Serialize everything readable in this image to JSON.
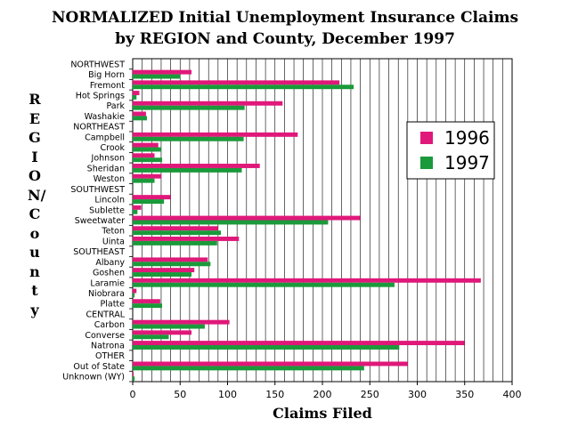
{
  "title_line1": "NORMALIZED Initial Unemployment Insurance Claims",
  "title_line2": "by REGION and County, December 1997",
  "chart_data": {
    "type": "bar",
    "orientation": "horizontal",
    "title": "NORMALIZED Initial Unemployment Insurance Claims by REGION and County, December 1997",
    "xlabel": "Claims Filed",
    "ylabel": "REGION/County",
    "xlim": [
      0,
      400
    ],
    "xticks": [
      0,
      50,
      100,
      150,
      200,
      250,
      300,
      350,
      400
    ],
    "grid": "vertical",
    "legend_position": "right",
    "categories": [
      "NORTHWEST",
      "Big Horn",
      "Fremont",
      "Hot Springs",
      "Park",
      "Washakie",
      "NORTHEAST",
      "Campbell",
      "Crook",
      "Johnson",
      "Sheridan",
      "Weston",
      "SOUTHWEST",
      "Lincoln",
      "Sublette",
      "Sweetwater",
      "Teton",
      "Uinta",
      "SOUTHEAST",
      "Albany",
      "Goshen",
      "Laramie",
      "Niobrara",
      "Platte",
      "CENTRAL",
      "Carbon",
      "Converse",
      "Natrona",
      "OTHER",
      "Out of State",
      "Unknown (WY)"
    ],
    "series": [
      {
        "name": "1996",
        "color": "#e0187a",
        "values": [
          null,
          62,
          218,
          7,
          158,
          14,
          null,
          174,
          27,
          23,
          134,
          30,
          null,
          40,
          9,
          240,
          90,
          112,
          null,
          79,
          65,
          367,
          4,
          29,
          null,
          102,
          62,
          350,
          null,
          290,
          1
        ]
      },
      {
        "name": "1997",
        "color": "#1a9a3a",
        "values": [
          null,
          50,
          233,
          4,
          118,
          15,
          null,
          117,
          30,
          31,
          115,
          23,
          null,
          33,
          5,
          206,
          93,
          89,
          null,
          82,
          62,
          276,
          2,
          31,
          null,
          76,
          38,
          281,
          null,
          244,
          2
        ]
      }
    ]
  },
  "colors": {
    "y1996": "#e0187a",
    "y1997": "#1a9a3a"
  }
}
